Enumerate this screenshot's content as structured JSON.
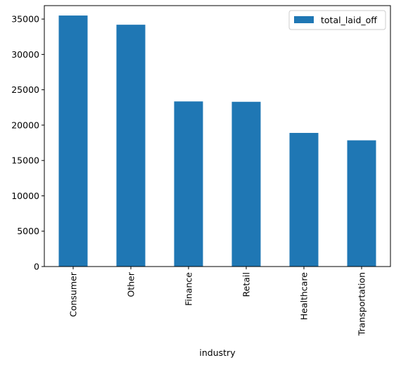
{
  "chart_data": {
    "type": "bar",
    "xlabel": "industry",
    "ylabel": "",
    "categories": [
      "Consumer",
      "Other",
      "Finance",
      "Retail",
      "Healthcare",
      "Transportation"
    ],
    "series": [
      {
        "name": "total_laid_off",
        "values": [
          35500,
          34200,
          23350,
          23300,
          18900,
          17850
        ]
      }
    ],
    "ylim": [
      0,
      36900
    ],
    "yticks": [
      0,
      5000,
      10000,
      15000,
      20000,
      25000,
      30000,
      35000
    ],
    "grid": false,
    "legend_position": "top-right",
    "bar_color": "#1f77b4"
  }
}
